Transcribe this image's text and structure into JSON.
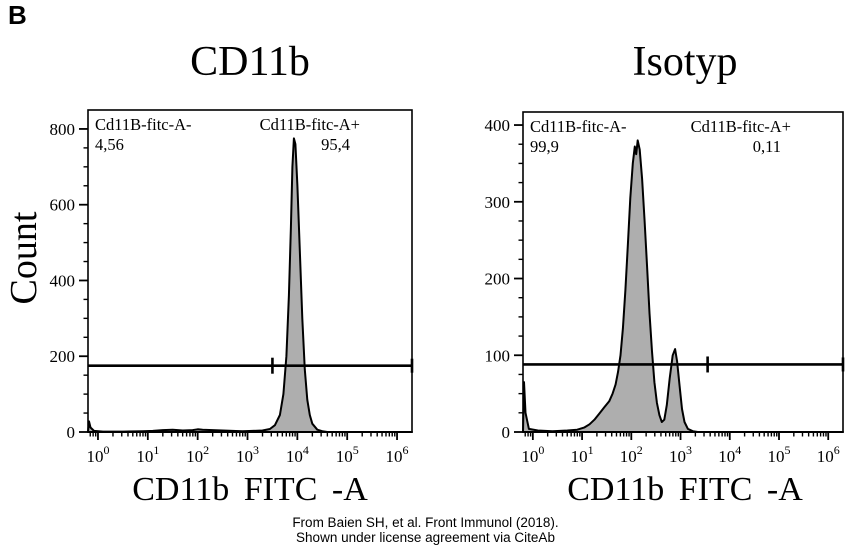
{
  "panel_label": "B",
  "footer": {
    "line1": "From Baien SH, et al. Front Immunol (2018).",
    "line2": "Shown under license agreement via CiteAb"
  },
  "colors": {
    "histogram_fill": "#aeaeae",
    "outline": "#000000",
    "background": "#ffffff"
  },
  "x_tick_base": "10",
  "chart_data": [
    {
      "type": "area",
      "title": "CD11b",
      "xlabel": "CD11b FITC -A",
      "ylabel": "Count",
      "x_scale": "log",
      "xlim_log": [
        -0.2,
        6.3
      ],
      "x_decade_exponents": [
        0,
        1,
        2,
        3,
        4,
        5,
        6
      ],
      "ylim": [
        0,
        850
      ],
      "y_major_ticks": [
        0,
        200,
        400,
        600,
        800
      ],
      "y_minor_step": 50,
      "gate_line": {
        "count": 175,
        "divider_log": 3.5,
        "right_cap_log": 6.3
      },
      "gates": [
        {
          "label": "Cd11B-fitc-A-",
          "value": "4,56",
          "align": "left"
        },
        {
          "label": "Cd11B-fitc-A+",
          "value": "95,4",
          "align": "right"
        }
      ],
      "points": [
        [
          -0.2,
          0
        ],
        [
          -0.18,
          28
        ],
        [
          -0.15,
          12
        ],
        [
          -0.08,
          3
        ],
        [
          0.1,
          1
        ],
        [
          0.5,
          1
        ],
        [
          0.9,
          2
        ],
        [
          1.1,
          3
        ],
        [
          1.3,
          5
        ],
        [
          1.5,
          6
        ],
        [
          1.7,
          4
        ],
        [
          1.9,
          5
        ],
        [
          2.0,
          7
        ],
        [
          2.1,
          6
        ],
        [
          2.3,
          5
        ],
        [
          2.5,
          4
        ],
        [
          2.7,
          3
        ],
        [
          2.9,
          2
        ],
        [
          3.1,
          3
        ],
        [
          3.3,
          4
        ],
        [
          3.45,
          8
        ],
        [
          3.55,
          18
        ],
        [
          3.65,
          45
        ],
        [
          3.72,
          100
        ],
        [
          3.78,
          200
        ],
        [
          3.83,
          360
        ],
        [
          3.87,
          540
        ],
        [
          3.9,
          700
        ],
        [
          3.93,
          775
        ],
        [
          3.96,
          760
        ],
        [
          4.0,
          650
        ],
        [
          4.05,
          480
        ],
        [
          4.1,
          300
        ],
        [
          4.15,
          165
        ],
        [
          4.2,
          85
        ],
        [
          4.25,
          45
        ],
        [
          4.3,
          22
        ],
        [
          4.4,
          6
        ],
        [
          4.5,
          2
        ],
        [
          4.6,
          0
        ],
        [
          6.3,
          0
        ]
      ]
    },
    {
      "type": "area",
      "title": "Isotyp",
      "xlabel": "CD11b FITC -A",
      "ylabel": "",
      "x_scale": "log",
      "xlim_log": [
        -0.2,
        6.3
      ],
      "x_decade_exponents": [
        0,
        1,
        2,
        3,
        4,
        5,
        6
      ],
      "ylim": [
        0,
        417
      ],
      "y_major_ticks": [
        0,
        100,
        200,
        300,
        400
      ],
      "y_minor_step": 25,
      "gate_line": {
        "count": 88,
        "divider_log": 3.55,
        "right_cap_log": 6.3
      },
      "gates": [
        {
          "label": "Cd11B-fitc-A-",
          "value": "99,9",
          "align": "left"
        },
        {
          "label": "Cd11B-fitc-A+",
          "value": "0,11",
          "align": "right"
        }
      ],
      "points": [
        [
          -0.2,
          0
        ],
        [
          -0.18,
          65
        ],
        [
          -0.15,
          25
        ],
        [
          -0.08,
          4
        ],
        [
          0.1,
          2
        ],
        [
          0.4,
          1
        ],
        [
          0.7,
          2
        ],
        [
          0.9,
          3
        ],
        [
          1.05,
          6
        ],
        [
          1.15,
          10
        ],
        [
          1.25,
          16
        ],
        [
          1.35,
          24
        ],
        [
          1.45,
          32
        ],
        [
          1.55,
          40
        ],
        [
          1.62,
          50
        ],
        [
          1.68,
          62
        ],
        [
          1.73,
          78
        ],
        [
          1.78,
          100
        ],
        [
          1.83,
          135
        ],
        [
          1.88,
          185
        ],
        [
          1.93,
          245
        ],
        [
          1.98,
          305
        ],
        [
          2.03,
          350
        ],
        [
          2.07,
          372
        ],
        [
          2.1,
          362
        ],
        [
          2.13,
          380
        ],
        [
          2.17,
          368
        ],
        [
          2.22,
          330
        ],
        [
          2.27,
          275
        ],
        [
          2.32,
          215
        ],
        [
          2.37,
          155
        ],
        [
          2.42,
          105
        ],
        [
          2.47,
          65
        ],
        [
          2.52,
          38
        ],
        [
          2.57,
          22
        ],
        [
          2.62,
          13
        ],
        [
          2.67,
          16
        ],
        [
          2.72,
          35
        ],
        [
          2.78,
          70
        ],
        [
          2.84,
          100
        ],
        [
          2.89,
          108
        ],
        [
          2.93,
          92
        ],
        [
          2.98,
          60
        ],
        [
          3.03,
          30
        ],
        [
          3.08,
          13
        ],
        [
          3.15,
          4
        ],
        [
          3.25,
          1
        ],
        [
          3.35,
          0
        ],
        [
          6.3,
          0
        ]
      ]
    }
  ]
}
